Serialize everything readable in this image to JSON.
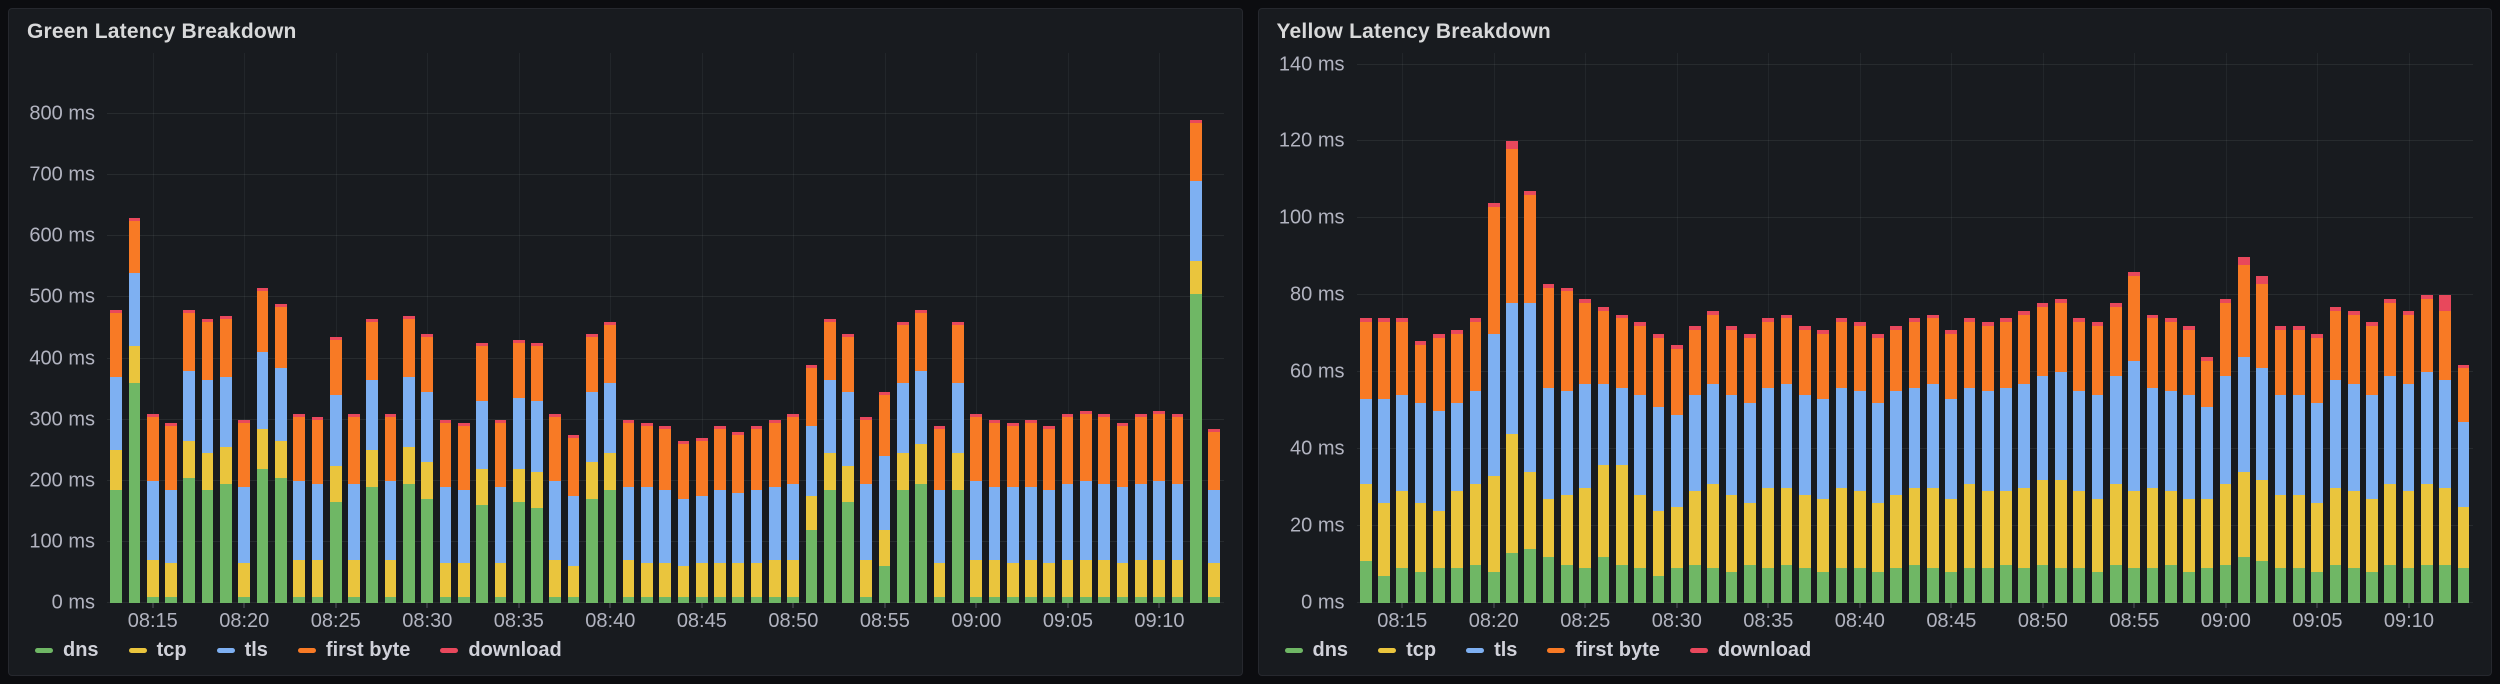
{
  "page": {
    "background": "#0c0d10",
    "panel_background": "#181b1f"
  },
  "panels": [
    {
      "title": "Green Latency Breakdown"
    },
    {
      "title": "Yellow Latency Breakdown"
    }
  ],
  "chart_data": [
    {
      "type": "bar",
      "stacked": true,
      "title": "Green Latency Breakdown",
      "xlabel": "",
      "ylabel": "latency",
      "unit": "ms",
      "ylim": [
        0,
        800
      ],
      "ymax_render": 900,
      "yticks": [
        0,
        100,
        200,
        300,
        400,
        500,
        600,
        700,
        800
      ],
      "grid": true,
      "legend_position": "bottom-left",
      "x": [
        "08:13",
        "08:14",
        "08:15",
        "08:16",
        "08:17",
        "08:18",
        "08:19",
        "08:20",
        "08:21",
        "08:22",
        "08:23",
        "08:24",
        "08:25",
        "08:26",
        "08:27",
        "08:28",
        "08:29",
        "08:30",
        "08:31",
        "08:32",
        "08:33",
        "08:34",
        "08:35",
        "08:36",
        "08:37",
        "08:38",
        "08:39",
        "08:40",
        "08:41",
        "08:42",
        "08:43",
        "08:44",
        "08:45",
        "08:46",
        "08:47",
        "08:48",
        "08:49",
        "08:50",
        "08:51",
        "08:52",
        "08:53",
        "08:54",
        "08:55",
        "08:56",
        "08:57",
        "08:58",
        "08:59",
        "09:00",
        "09:01",
        "09:02",
        "09:03",
        "09:04",
        "09:05",
        "09:06",
        "09:07",
        "09:08",
        "09:09",
        "09:10",
        "09:11",
        "09:12",
        "09:13"
      ],
      "x_tick_indices": [
        2,
        7,
        12,
        17,
        22,
        27,
        32,
        37,
        42,
        47,
        52,
        57
      ],
      "series": [
        {
          "key": "dns",
          "name": "dns",
          "color": "#6fb765",
          "values": [
            185,
            360,
            10,
            10,
            205,
            185,
            195,
            10,
            220,
            205,
            10,
            10,
            165,
            10,
            190,
            10,
            195,
            170,
            10,
            10,
            160,
            10,
            165,
            155,
            10,
            10,
            170,
            185,
            10,
            10,
            10,
            10,
            10,
            10,
            10,
            10,
            10,
            10,
            120,
            185,
            165,
            10,
            60,
            185,
            195,
            10,
            185,
            10,
            10,
            10,
            10,
            10,
            10,
            10,
            10,
            10,
            10,
            10,
            10,
            505,
            10
          ]
        },
        {
          "key": "tcp",
          "name": "tcp",
          "color": "#eac53d",
          "values": [
            65,
            60,
            60,
            55,
            60,
            60,
            60,
            55,
            65,
            60,
            60,
            60,
            60,
            60,
            60,
            60,
            60,
            60,
            55,
            55,
            60,
            55,
            55,
            60,
            60,
            50,
            60,
            60,
            60,
            55,
            55,
            50,
            55,
            55,
            55,
            55,
            60,
            60,
            55,
            60,
            60,
            60,
            60,
            60,
            65,
            55,
            60,
            60,
            60,
            55,
            60,
            55,
            60,
            60,
            60,
            55,
            60,
            60,
            60,
            55,
            55
          ]
        },
        {
          "key": "tls",
          "name": "tls",
          "color": "#7eb0f2",
          "values": [
            120,
            120,
            130,
            120,
            115,
            120,
            115,
            125,
            125,
            120,
            130,
            125,
            115,
            125,
            115,
            130,
            115,
            115,
            125,
            120,
            110,
            125,
            115,
            115,
            130,
            115,
            115,
            115,
            120,
            125,
            120,
            110,
            110,
            120,
            115,
            120,
            120,
            125,
            115,
            120,
            120,
            125,
            120,
            115,
            120,
            120,
            115,
            130,
            120,
            125,
            120,
            120,
            125,
            130,
            125,
            125,
            125,
            130,
            125,
            130,
            120
          ]
        },
        {
          "key": "first-byte",
          "name": "first byte",
          "color": "#f87a25",
          "values": [
            105,
            85,
            105,
            105,
            95,
            95,
            95,
            105,
            100,
            100,
            105,
            105,
            90,
            110,
            95,
            105,
            95,
            90,
            105,
            105,
            90,
            105,
            90,
            90,
            105,
            95,
            90,
            95,
            105,
            100,
            100,
            90,
            90,
            100,
            95,
            100,
            105,
            110,
            95,
            95,
            90,
            105,
            100,
            95,
            95,
            100,
            95,
            105,
            105,
            100,
            105,
            100,
            110,
            110,
            110,
            100,
            110,
            110,
            110,
            95,
            95
          ]
        },
        {
          "key": "download",
          "name": "download",
          "color": "#e8485c",
          "values": [
            5,
            5,
            5,
            5,
            5,
            5,
            5,
            5,
            5,
            5,
            5,
            5,
            5,
            5,
            5,
            5,
            5,
            5,
            5,
            5,
            5,
            5,
            5,
            5,
            5,
            5,
            5,
            5,
            5,
            5,
            5,
            5,
            5,
            5,
            5,
            5,
            5,
            5,
            5,
            5,
            5,
            5,
            5,
            5,
            5,
            5,
            5,
            5,
            5,
            5,
            5,
            5,
            5,
            5,
            5,
            5,
            5,
            5,
            5,
            5,
            5
          ]
        }
      ]
    },
    {
      "type": "bar",
      "stacked": true,
      "title": "Yellow Latency Breakdown",
      "xlabel": "",
      "ylabel": "latency",
      "unit": "ms",
      "ylim": [
        0,
        140
      ],
      "ymax_render": 143,
      "yticks": [
        0,
        20,
        40,
        60,
        80,
        100,
        120,
        140
      ],
      "grid": true,
      "legend_position": "bottom-left",
      "x": [
        "08:13",
        "08:14",
        "08:15",
        "08:16",
        "08:17",
        "08:18",
        "08:19",
        "08:20",
        "08:21",
        "08:22",
        "08:23",
        "08:24",
        "08:25",
        "08:26",
        "08:27",
        "08:28",
        "08:29",
        "08:30",
        "08:31",
        "08:32",
        "08:33",
        "08:34",
        "08:35",
        "08:36",
        "08:37",
        "08:38",
        "08:39",
        "08:40",
        "08:41",
        "08:42",
        "08:43",
        "08:44",
        "08:45",
        "08:46",
        "08:47",
        "08:48",
        "08:49",
        "08:50",
        "08:51",
        "08:52",
        "08:53",
        "08:54",
        "08:55",
        "08:56",
        "08:57",
        "08:58",
        "08:59",
        "09:00",
        "09:01",
        "09:02",
        "09:03",
        "09:04",
        "09:05",
        "09:06",
        "09:07",
        "09:08",
        "09:09",
        "09:10",
        "09:11",
        "09:12",
        "09:13"
      ],
      "x_tick_indices": [
        2,
        7,
        12,
        17,
        22,
        27,
        32,
        37,
        42,
        47,
        52,
        57
      ],
      "series": [
        {
          "key": "dns",
          "name": "dns",
          "color": "#6fb765",
          "values": [
            11,
            7,
            9,
            8,
            9,
            9,
            10,
            8,
            13,
            14,
            12,
            10,
            9,
            12,
            10,
            9,
            7,
            9,
            10,
            9,
            8,
            10,
            9,
            10,
            9,
            8,
            9,
            9,
            8,
            9,
            10,
            9,
            8,
            9,
            9,
            10,
            9,
            10,
            9,
            9,
            8,
            10,
            9,
            9,
            10,
            8,
            9,
            10,
            12,
            11,
            9,
            9,
            8,
            10,
            9,
            8,
            10,
            9,
            10,
            10,
            9
          ]
        },
        {
          "key": "tcp",
          "name": "tcp",
          "color": "#eac53d",
          "values": [
            20,
            19,
            20,
            18,
            15,
            20,
            21,
            25,
            31,
            20,
            15,
            18,
            21,
            24,
            26,
            19,
            17,
            16,
            19,
            22,
            20,
            16,
            21,
            20,
            19,
            19,
            21,
            20,
            18,
            19,
            20,
            21,
            19,
            22,
            20,
            19,
            21,
            22,
            23,
            20,
            19,
            21,
            20,
            21,
            19,
            19,
            18,
            21,
            22,
            21,
            19,
            19,
            18,
            20,
            20,
            19,
            21,
            20,
            21,
            20,
            16
          ]
        },
        {
          "key": "tls",
          "name": "tls",
          "color": "#7eb0f2",
          "values": [
            22,
            27,
            25,
            26,
            26,
            23,
            24,
            37,
            34,
            44,
            29,
            27,
            27,
            21,
            20,
            26,
            27,
            24,
            25,
            26,
            26,
            26,
            26,
            27,
            26,
            26,
            26,
            26,
            26,
            27,
            26,
            27,
            26,
            25,
            26,
            27,
            27,
            27,
            28,
            26,
            27,
            28,
            34,
            26,
            26,
            27,
            24,
            28,
            30,
            29,
            26,
            26,
            26,
            28,
            28,
            27,
            28,
            28,
            29,
            28,
            22
          ]
        },
        {
          "key": "first-byte",
          "name": "first byte",
          "color": "#f87a25",
          "values": [
            20,
            20,
            19,
            15,
            19,
            18,
            18,
            33,
            40,
            28,
            26,
            26,
            21,
            19,
            18,
            18,
            18,
            17,
            17,
            18,
            17,
            17,
            17,
            17,
            17,
            17,
            17,
            17,
            17,
            16,
            17,
            17,
            17,
            17,
            17,
            17,
            18,
            18,
            18,
            18,
            18,
            18,
            22,
            18,
            18,
            17,
            12,
            19,
            24,
            22,
            17,
            17,
            17,
            18,
            18,
            18,
            19,
            18,
            19,
            18,
            14
          ]
        },
        {
          "key": "download",
          "name": "download",
          "color": "#e8485c",
          "values": [
            1,
            1,
            1,
            1,
            1,
            1,
            1,
            1,
            2,
            1,
            1,
            1,
            1,
            1,
            1,
            1,
            1,
            1,
            1,
            1,
            1,
            1,
            1,
            1,
            1,
            1,
            1,
            1,
            1,
            1,
            1,
            1,
            1,
            1,
            1,
            1,
            1,
            1,
            1,
            1,
            1,
            1,
            1,
            1,
            1,
            1,
            1,
            1,
            2,
            2,
            1,
            1,
            1,
            1,
            1,
            1,
            1,
            1,
            1,
            4,
            1
          ]
        }
      ]
    }
  ]
}
